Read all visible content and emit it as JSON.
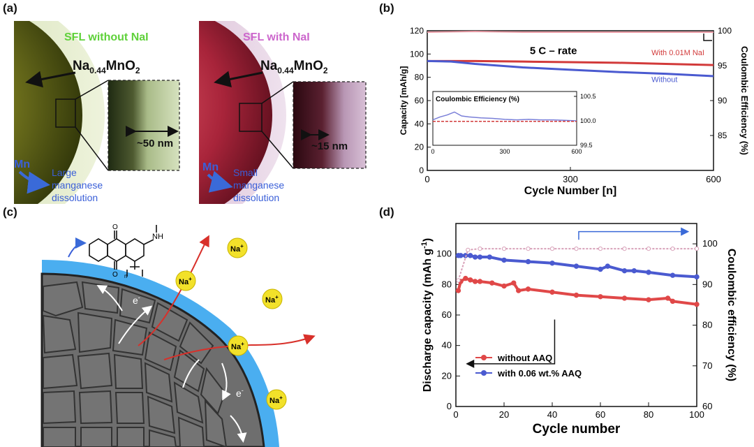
{
  "panels": {
    "a": "(a)",
    "b": "(b)",
    "c": "(c)",
    "d": "(d)"
  },
  "panel_a": {
    "left_title": "SFL without NaI",
    "right_title": "SFL with NaI",
    "material_main": "Na",
    "material_sub": "0.44",
    "material_rest": "MnO",
    "material_sub2": "2",
    "left_thickness": "~50 nm",
    "right_thickness": "~15 nm",
    "mn_label": "Mn",
    "left_dissolution": [
      "Large",
      "manganese",
      "dissolution"
    ],
    "right_dissolution": [
      "Small",
      "manganese",
      "dissolution"
    ],
    "colors": {
      "left_title": "#5fd13a",
      "right_title": "#cc66cc",
      "mn": "#3a5fd8"
    }
  },
  "panel_c": {
    "ion_label": "Na",
    "ion_charge": "+",
    "electron_label": "e",
    "electron_charge": "-",
    "polymer_nh": "NH",
    "polymer_n": "n",
    "polymer_o": "O",
    "colors": {
      "ion": "#f2e12a",
      "coating": "#4aaef0",
      "particle": "#6e6e6e"
    }
  },
  "chart_data": [
    {
      "id": "b",
      "type": "line",
      "ylabel": "Capacity [mAh/g]",
      "y2label": "Coulombic Efficiency (%)",
      "xlabel": "Cycle Number [n]",
      "xlim": [
        0,
        600
      ],
      "ylim": [
        0,
        120
      ],
      "y2lim": [
        80,
        100
      ],
      "xticks": [
        0,
        300,
        600
      ],
      "yticks": [
        0,
        20,
        40,
        60,
        80,
        100,
        120
      ],
      "y2ticks": [
        85,
        90,
        95,
        100
      ],
      "annotation": "5 C – rate",
      "series": [
        {
          "name": "With 0.01M NaI",
          "axis": "left",
          "color": "#d23a3a",
          "x": [
            0,
            100,
            200,
            300,
            400,
            500,
            600
          ],
          "y": [
            94,
            94,
            93.5,
            93,
            92.5,
            91.5,
            90.5
          ]
        },
        {
          "name": "Without",
          "axis": "left",
          "color": "#4a5ad0",
          "x": [
            0,
            50,
            100,
            150,
            200,
            300,
            400,
            500,
            600
          ],
          "y": [
            94,
            93.5,
            91.5,
            90,
            88.5,
            86.5,
            84.5,
            83,
            81
          ]
        },
        {
          "axis": "right",
          "color": "#e89aa4",
          "x": [
            0,
            100,
            200,
            300,
            400,
            500,
            600
          ],
          "y": [
            99.8,
            99.9,
            99.8,
            99.8,
            99.8,
            99.8,
            99.8
          ]
        }
      ],
      "inset": {
        "title": "Coulombic Efficiency (%)",
        "xlim": [
          0,
          600
        ],
        "ylim": [
          99.5,
          100.6
        ],
        "xticks": [
          0,
          300,
          600
        ],
        "yticks": [
          99.5,
          100.0,
          100.5
        ],
        "series": [
          {
            "color": "#7a7fd8",
            "x": [
              0,
              30,
              60,
              90,
              120,
              150,
              200,
              250,
              300,
              350,
              400,
              450,
              500,
              550,
              600
            ],
            "y": [
              100.02,
              100.08,
              100.12,
              100.18,
              100.1,
              100.08,
              100.06,
              100.05,
              100.03,
              100.02,
              100.03,
              100.02,
              100.02,
              100.01,
              100.0
            ]
          },
          {
            "color": "#d23a3a",
            "x": [
              0,
              600
            ],
            "y": [
              99.99,
              99.99
            ]
          }
        ]
      }
    },
    {
      "id": "d",
      "type": "scatter",
      "ylabel": "Discharge capacity (mAh g",
      "ylabel_sup": "-1",
      "ylabel_end": ")",
      "y2label": "Coulombic efficiency (%)",
      "xlabel": "Cycle number",
      "xlim": [
        0,
        100
      ],
      "ylim": [
        0,
        120
      ],
      "y2lim": [
        60,
        105
      ],
      "xticks": [
        0,
        20,
        40,
        60,
        80,
        100
      ],
      "yticks": [
        0,
        20,
        40,
        60,
        80,
        100
      ],
      "y2ticks": [
        60,
        70,
        80,
        90,
        100
      ],
      "series": [
        {
          "name": "without AAQ",
          "axis": "left",
          "color": "#e04848",
          "x": [
            1,
            2,
            4,
            6,
            8,
            10,
            15,
            20,
            24,
            26,
            30,
            40,
            50,
            60,
            70,
            80,
            88,
            90,
            100
          ],
          "y": [
            76,
            82,
            84,
            83,
            82,
            82,
            81,
            79,
            81,
            76,
            77,
            75,
            73,
            72,
            71,
            70,
            71,
            69,
            67
          ]
        },
        {
          "name": "with 0.06 wt.% AAQ",
          "axis": "left",
          "color": "#4a5ad0",
          "x": [
            1,
            2,
            4,
            6,
            8,
            10,
            14,
            20,
            30,
            40,
            50,
            60,
            63,
            70,
            74,
            80,
            90,
            100
          ],
          "y": [
            99,
            99,
            99,
            99,
            98,
            98,
            98,
            96,
            95,
            94,
            92,
            90,
            92,
            89,
            89,
            88,
            86,
            85
          ]
        },
        {
          "axis": "right",
          "color": "#d8a0b8",
          "x": [
            1,
            5,
            10,
            20,
            30,
            40,
            50,
            60,
            70,
            80,
            90,
            100
          ],
          "y": [
            91,
            98.5,
            98.8,
            98.8,
            98.8,
            98.8,
            98.8,
            98.8,
            98.8,
            98.8,
            98.8,
            98.8
          ]
        }
      ]
    }
  ]
}
